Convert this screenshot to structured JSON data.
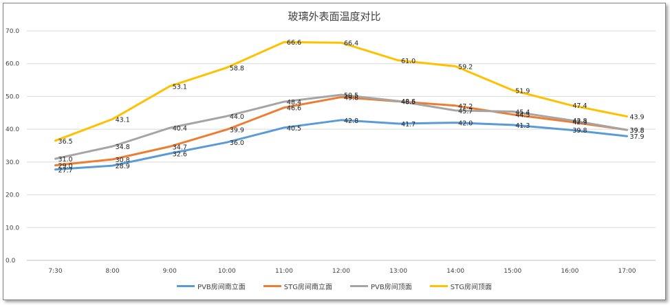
{
  "chart_data": {
    "type": "line",
    "title": "玻璃外表面温度对比",
    "xlabel": "",
    "ylabel": "",
    "ylim": [
      0,
      70
    ],
    "yticks": [
      "0.0",
      "10.0",
      "20.0",
      "30.0",
      "40.0",
      "50.0",
      "60.0",
      "70.0"
    ],
    "grid": true,
    "legend_position": "bottom",
    "categories": [
      "7:30",
      "8:00",
      "9:00",
      "10:00",
      "11:00",
      "12:00",
      "13:00",
      "14:00",
      "15:00",
      "16:00",
      "17:00"
    ],
    "series": [
      {
        "name": "PVB房间南立面",
        "color": "#5B9BD5",
        "values": [
          27.7,
          28.9,
          32.6,
          36.0,
          40.5,
          42.8,
          41.7,
          42.0,
          41.3,
          39.8,
          37.9
        ]
      },
      {
        "name": "STG房间南立面",
        "color": "#ED7D31",
        "values": [
          29.0,
          30.8,
          34.7,
          39.9,
          46.6,
          49.8,
          48.5,
          47.2,
          44.5,
          42.3,
          39.8
        ]
      },
      {
        "name": "PVB房间顶面",
        "color": "#A5A5A5",
        "values": [
          31.0,
          34.8,
          40.4,
          44.0,
          48.4,
          50.5,
          48.6,
          45.7,
          45.4,
          42.8,
          39.8
        ]
      },
      {
        "name": "STG房间顶面",
        "color": "#FFC000",
        "values": [
          36.5,
          43.1,
          53.1,
          58.8,
          66.6,
          66.4,
          61.0,
          59.2,
          51.9,
          47.4,
          43.9
        ]
      }
    ]
  }
}
